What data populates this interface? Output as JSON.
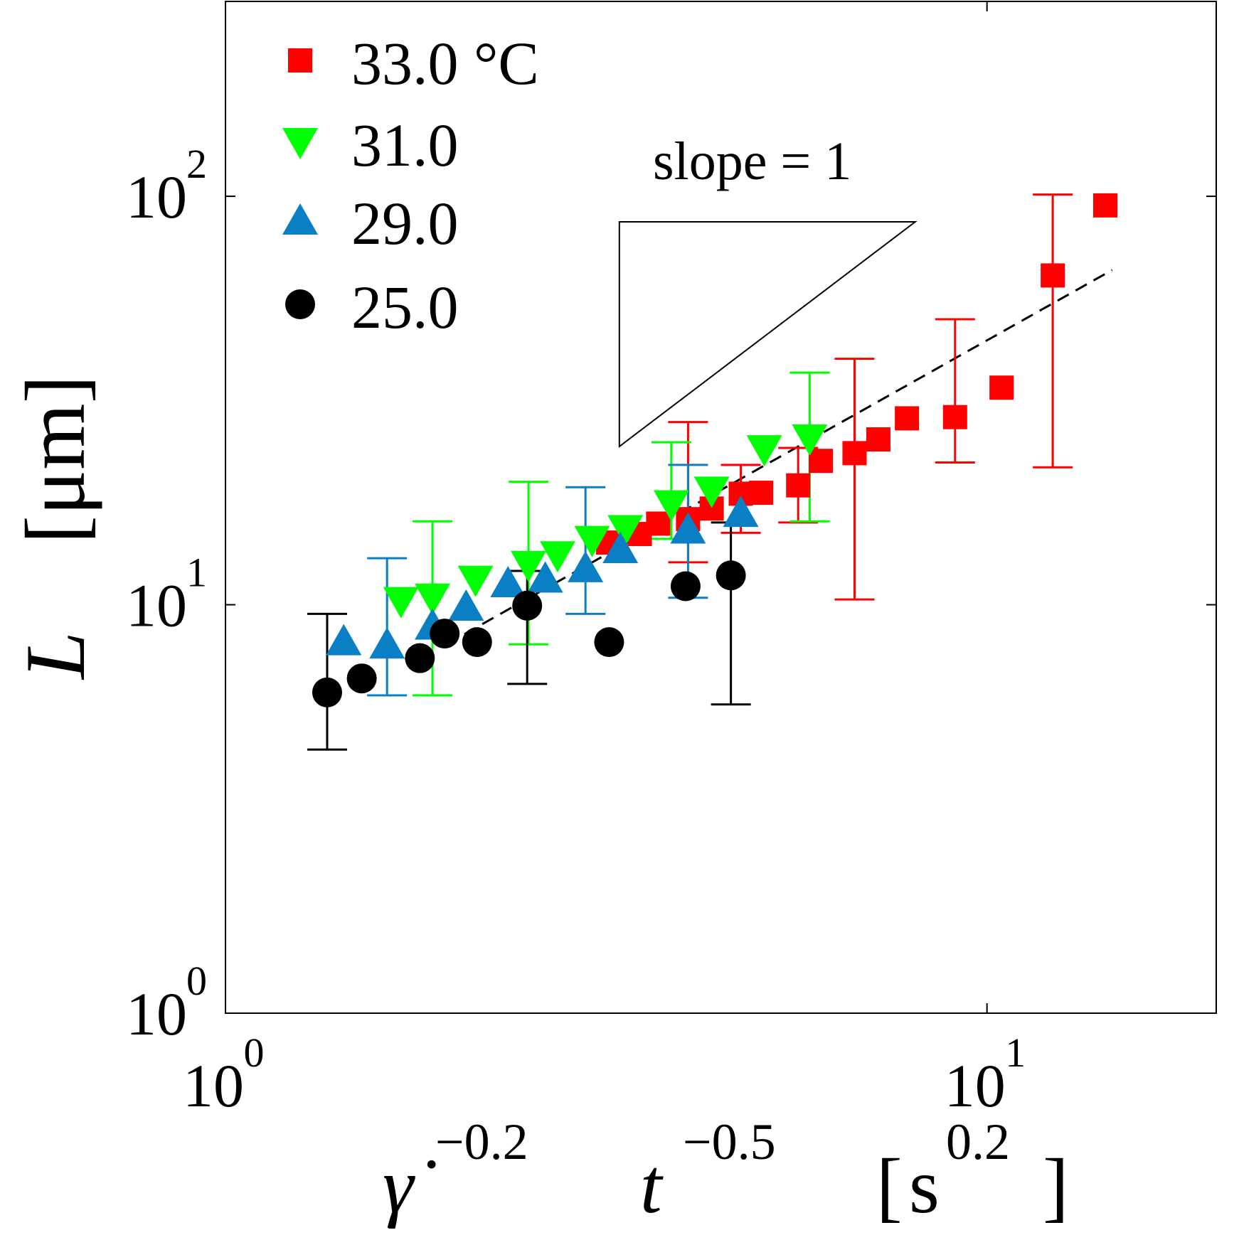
{
  "chart_data": {
    "type": "scatter",
    "x_scale": "log",
    "y_scale": "log",
    "xlim": [
      1,
      20
    ],
    "ylim": [
      1,
      300
    ],
    "x_ticks": [
      {
        "value": 1,
        "base": "10",
        "exp": "0"
      },
      {
        "value": 10,
        "base": "10",
        "exp": "1"
      }
    ],
    "y_ticks": [
      {
        "value": 1,
        "base": "10",
        "exp": "0"
      },
      {
        "value": 10,
        "base": "10",
        "exp": "1"
      },
      {
        "value": 100,
        "base": "10",
        "exp": "2"
      }
    ],
    "xlabel": {
      "symbol": "γ̇",
      "exp1": "−0.2",
      "var": "t",
      "exp2": "−0.5",
      "unit_open": "[",
      "unit": "s",
      "unit_exp": "0.2",
      "unit_close": "]"
    },
    "ylabel": {
      "var": "L",
      "unit": "[μm]"
    },
    "legend_position": "top-left",
    "series": [
      {
        "name": "33.0 °C",
        "marker": "square",
        "color": "#ff0000",
        "points": [
          {
            "x": 3.18,
            "y": 14.2
          },
          {
            "x": 3.5,
            "y": 14.9
          },
          {
            "x": 3.7,
            "y": 15.8
          },
          {
            "x": 4.05,
            "y": 16.2,
            "err_low": 12.7,
            "err_high": 28.0
          },
          {
            "x": 4.35,
            "y": 17.2
          },
          {
            "x": 4.75,
            "y": 18.7,
            "err_low": 15.0,
            "err_high": 22.0
          },
          {
            "x": 5.05,
            "y": 18.8
          },
          {
            "x": 5.65,
            "y": 19.6,
            "err_low": 15.9,
            "err_high": 24.2
          },
          {
            "x": 6.05,
            "y": 22.5
          },
          {
            "x": 6.7,
            "y": 23.5,
            "err_low": 10.3,
            "err_high": 40.0
          },
          {
            "x": 7.2,
            "y": 25.4
          },
          {
            "x": 7.85,
            "y": 28.6
          },
          {
            "x": 9.08,
            "y": 28.8,
            "err_low": 22.3,
            "err_high": 50.0
          },
          {
            "x": 10.45,
            "y": 34.0
          },
          {
            "x": 12.2,
            "y": 64.0,
            "err_low": 21.7,
            "err_high": 101.0
          },
          {
            "x": 14.3,
            "y": 95.0
          }
        ]
      },
      {
        "name": "31.0",
        "marker": "triangle-down",
        "color": "#00ff00",
        "points": [
          {
            "x": 1.7,
            "y": 10.2
          },
          {
            "x": 1.87,
            "y": 10.4,
            "err_low": 6.0,
            "err_high": 16.0
          },
          {
            "x": 2.13,
            "y": 11.5
          },
          {
            "x": 2.5,
            "y": 12.5,
            "err_low": 8.0,
            "err_high": 20.0
          },
          {
            "x": 2.73,
            "y": 13.2
          },
          {
            "x": 3.03,
            "y": 14.4
          },
          {
            "x": 3.35,
            "y": 15.3
          },
          {
            "x": 3.85,
            "y": 17.6,
            "err_low": 14.5,
            "err_high": 25.0
          },
          {
            "x": 4.35,
            "y": 19.0
          },
          {
            "x": 5.1,
            "y": 24.0
          },
          {
            "x": 5.85,
            "y": 25.5,
            "err_low": 16.0,
            "err_high": 37.0
          }
        ]
      },
      {
        "name": "29.0",
        "marker": "triangle-up",
        "color": "#0a7fc4",
        "points": [
          {
            "x": 1.43,
            "y": 8.15
          },
          {
            "x": 1.63,
            "y": 8.0,
            "err_low": 6.0,
            "err_high": 13.0
          },
          {
            "x": 1.87,
            "y": 8.9
          },
          {
            "x": 2.07,
            "y": 9.9
          },
          {
            "x": 2.35,
            "y": 11.3
          },
          {
            "x": 2.63,
            "y": 11.6
          },
          {
            "x": 2.97,
            "y": 12.3,
            "err_low": 9.5,
            "err_high": 19.4
          },
          {
            "x": 3.3,
            "y": 13.7
          },
          {
            "x": 4.05,
            "y": 15.3,
            "err_low": 10.4,
            "err_high": 22.0
          },
          {
            "x": 4.75,
            "y": 16.8
          }
        ]
      },
      {
        "name": "25.0",
        "marker": "circle",
        "color": "#000000",
        "points": [
          {
            "x": 1.36,
            "y": 6.1,
            "err_low": 4.42,
            "err_high": 9.5
          },
          {
            "x": 1.51,
            "y": 6.6
          },
          {
            "x": 1.8,
            "y": 7.4
          },
          {
            "x": 1.94,
            "y": 8.5
          },
          {
            "x": 2.14,
            "y": 8.1
          },
          {
            "x": 2.49,
            "y": 9.95,
            "err_low": 6.4,
            "err_high": 12.1
          },
          {
            "x": 3.19,
            "y": 8.1
          },
          {
            "x": 4.02,
            "y": 11.1
          },
          {
            "x": 4.61,
            "y": 11.8,
            "err_low": 5.7,
            "err_high": 15.9
          }
        ]
      }
    ],
    "fit_line": {
      "style": "dashed",
      "x_start": 1.95,
      "y_start": 8.0,
      "x_end": 14.6,
      "y_end": 66.0
    },
    "annotation": {
      "text": "slope = 1",
      "triangle": [
        [
          3.29,
          24.4
        ],
        [
          3.29,
          86.6
        ],
        [
          8.05,
          86.6
        ]
      ]
    }
  }
}
